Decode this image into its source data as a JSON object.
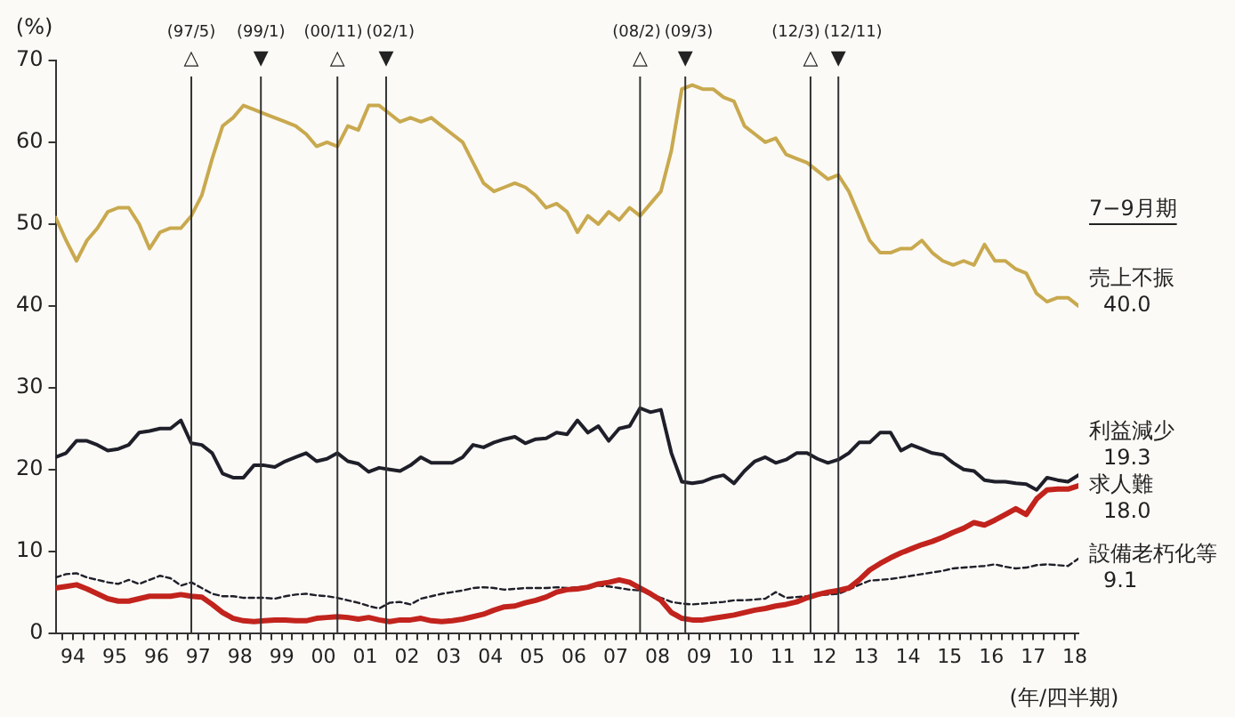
{
  "chart_data": {
    "type": "line",
    "ylabel": "(%)",
    "xlabel": "(年/四半期)",
    "x": [
      "1994-02",
      "1994-05",
      "1994-08",
      "1994-11",
      "1995-02",
      "1995-05",
      "1995-08",
      "1995-11",
      "1996-02",
      "1996-05",
      "1996-08",
      "1996-11",
      "1997-02",
      "1997-05",
      "1997-08",
      "1997-11",
      "1998-02",
      "1998-05",
      "1998-08",
      "1998-11",
      "1999-02",
      "1999-05",
      "1999-08",
      "1999-11",
      "2000-02",
      "2000-05",
      "2000-08",
      "2000-11",
      "2001-02",
      "2001-05",
      "2001-08",
      "2001-11",
      "2002-02",
      "2002-05",
      "2002-08",
      "2002-11",
      "2003-02",
      "2003-05",
      "2003-08",
      "2003-11",
      "2004-02",
      "2004-05",
      "2004-08",
      "2004-11",
      "2005-02",
      "2005-05",
      "2005-08",
      "2005-11",
      "2006-02",
      "2006-05",
      "2006-08",
      "2006-11",
      "2007-02",
      "2007-05",
      "2007-08",
      "2007-11",
      "2008-02",
      "2008-05",
      "2008-08",
      "2008-11",
      "2009-02",
      "2009-05",
      "2009-08",
      "2009-11",
      "2010-02",
      "2010-05",
      "2010-08",
      "2010-11",
      "2011-02",
      "2011-05",
      "2011-08",
      "2011-11",
      "2012-02",
      "2012-05",
      "2012-08",
      "2012-11",
      "2013-02",
      "2013-05",
      "2013-08",
      "2013-11",
      "2014-02",
      "2014-05",
      "2014-08",
      "2014-11",
      "2015-02",
      "2015-05",
      "2015-08",
      "2015-11",
      "2016-02",
      "2016-05",
      "2016-08",
      "2016-11",
      "2017-02",
      "2017-05",
      "2017-08",
      "2017-11",
      "2018-02",
      "2018-05",
      "2018-08"
    ],
    "xlim": [
      "1994-02",
      "2018-08"
    ],
    "xticks": [
      {
        "value": "1994-04",
        "label": null
      },
      {
        "value": "1994-07",
        "label": "94"
      },
      {
        "value": "1994-10",
        "label": null
      },
      {
        "value": "1995-01",
        "label": null
      },
      {
        "value": "1995-04",
        "label": null
      },
      {
        "value": "1995-07",
        "label": "95"
      },
      {
        "value": "1995-10",
        "label": null
      },
      {
        "value": "1996-01",
        "label": null
      },
      {
        "value": "1996-04",
        "label": null
      },
      {
        "value": "1996-07",
        "label": "96"
      },
      {
        "value": "1996-10",
        "label": null
      },
      {
        "value": "1997-01",
        "label": null
      },
      {
        "value": "1997-04",
        "label": null
      },
      {
        "value": "1997-07",
        "label": "97"
      },
      {
        "value": "1997-10",
        "label": null
      },
      {
        "value": "1998-01",
        "label": null
      },
      {
        "value": "1998-04",
        "label": null
      },
      {
        "value": "1998-07",
        "label": "98"
      },
      {
        "value": "1998-10",
        "label": null
      },
      {
        "value": "1999-01",
        "label": null
      },
      {
        "value": "1999-04",
        "label": null
      },
      {
        "value": "1999-07",
        "label": "99"
      },
      {
        "value": "1999-10",
        "label": null
      },
      {
        "value": "2000-01",
        "label": null
      },
      {
        "value": "2000-04",
        "label": null
      },
      {
        "value": "2000-07",
        "label": "00"
      },
      {
        "value": "2000-10",
        "label": null
      },
      {
        "value": "2001-01",
        "label": null
      },
      {
        "value": "2001-04",
        "label": null
      },
      {
        "value": "2001-07",
        "label": "01"
      },
      {
        "value": "2001-10",
        "label": null
      },
      {
        "value": "2002-01",
        "label": null
      },
      {
        "value": "2002-04",
        "label": null
      },
      {
        "value": "2002-07",
        "label": "02"
      },
      {
        "value": "2002-10",
        "label": null
      },
      {
        "value": "2003-01",
        "label": null
      },
      {
        "value": "2003-04",
        "label": null
      },
      {
        "value": "2003-07",
        "label": "03"
      },
      {
        "value": "2003-10",
        "label": null
      },
      {
        "value": "2004-01",
        "label": null
      },
      {
        "value": "2004-04",
        "label": null
      },
      {
        "value": "2004-07",
        "label": "04"
      },
      {
        "value": "2004-10",
        "label": null
      },
      {
        "value": "2005-01",
        "label": null
      },
      {
        "value": "2005-04",
        "label": null
      },
      {
        "value": "2005-07",
        "label": "05"
      },
      {
        "value": "2005-10",
        "label": null
      },
      {
        "value": "2006-01",
        "label": null
      },
      {
        "value": "2006-04",
        "label": null
      },
      {
        "value": "2006-07",
        "label": "06"
      },
      {
        "value": "2006-10",
        "label": null
      },
      {
        "value": "2007-01",
        "label": null
      },
      {
        "value": "2007-04",
        "label": null
      },
      {
        "value": "2007-07",
        "label": "07"
      },
      {
        "value": "2007-10",
        "label": null
      },
      {
        "value": "2008-01",
        "label": null
      },
      {
        "value": "2008-04",
        "label": null
      },
      {
        "value": "2008-07",
        "label": "08"
      },
      {
        "value": "2008-10",
        "label": null
      },
      {
        "value": "2009-01",
        "label": null
      },
      {
        "value": "2009-04",
        "label": null
      },
      {
        "value": "2009-07",
        "label": "09"
      },
      {
        "value": "2009-10",
        "label": null
      },
      {
        "value": "2010-01",
        "label": null
      },
      {
        "value": "2010-04",
        "label": null
      },
      {
        "value": "2010-07",
        "label": "10"
      },
      {
        "value": "2010-10",
        "label": null
      },
      {
        "value": "2011-01",
        "label": null
      },
      {
        "value": "2011-04",
        "label": null
      },
      {
        "value": "2011-07",
        "label": "11"
      },
      {
        "value": "2011-10",
        "label": null
      },
      {
        "value": "2012-01",
        "label": null
      },
      {
        "value": "2012-04",
        "label": null
      },
      {
        "value": "2012-07",
        "label": "12"
      },
      {
        "value": "2012-10",
        "label": null
      },
      {
        "value": "2013-01",
        "label": null
      },
      {
        "value": "2013-04",
        "label": null
      },
      {
        "value": "2013-07",
        "label": "13"
      },
      {
        "value": "2013-10",
        "label": null
      },
      {
        "value": "2014-01",
        "label": null
      },
      {
        "value": "2014-04",
        "label": null
      },
      {
        "value": "2014-07",
        "label": "14"
      },
      {
        "value": "2014-10",
        "label": null
      },
      {
        "value": "2015-01",
        "label": null
      },
      {
        "value": "2015-04",
        "label": null
      },
      {
        "value": "2015-07",
        "label": "15"
      },
      {
        "value": "2015-10",
        "label": null
      },
      {
        "value": "2016-01",
        "label": null
      },
      {
        "value": "2016-04",
        "label": null
      },
      {
        "value": "2016-07",
        "label": "16"
      },
      {
        "value": "2016-10",
        "label": null
      },
      {
        "value": "2017-01",
        "label": null
      },
      {
        "value": "2017-04",
        "label": null
      },
      {
        "value": "2017-07",
        "label": "17"
      },
      {
        "value": "2017-10",
        "label": null
      },
      {
        "value": "2018-01",
        "label": null
      },
      {
        "value": "2018-04",
        "label": null
      },
      {
        "value": "2018-07",
        "label": "18"
      }
    ],
    "ylim": [
      0,
      70
    ],
    "yticks": [
      0,
      10,
      20,
      30,
      40,
      50,
      60,
      70
    ],
    "legend": false,
    "marker": "none",
    "series": [
      {
        "name": "売上不振",
        "color": "#c9a94f",
        "values": [
          50.8,
          48,
          45.5,
          48,
          49.5,
          51.5,
          52,
          52,
          50,
          47,
          49,
          49.5,
          49.5,
          51,
          53.5,
          58,
          62,
          63,
          64.5,
          64,
          63.5,
          63,
          62.5,
          62,
          61,
          59.5,
          60,
          59.5,
          62,
          61.5,
          64.5,
          64.5,
          63.5,
          62.5,
          63,
          62.5,
          63,
          62,
          61,
          60,
          57.5,
          55,
          54,
          54.5,
          55,
          54.5,
          53.5,
          52,
          52.5,
          51.5,
          49,
          51,
          50,
          51.5,
          50.5,
          52,
          51,
          52.5,
          54,
          59,
          66.5,
          67,
          66.5,
          66.5,
          65.5,
          65,
          62,
          61,
          60,
          60.5,
          58.5,
          58,
          57.5,
          56.5,
          55.5,
          56,
          54,
          51,
          48,
          46.5,
          46.5,
          47,
          47,
          48,
          46.5,
          45.5,
          45,
          45.5,
          45,
          47.5,
          45.5,
          45.5,
          44.5,
          44,
          41.5,
          40.5,
          41,
          41,
          40.0
        ]
      },
      {
        "name": "利益減少",
        "color": "#1f1f2a",
        "values": [
          21.5,
          22,
          23.5,
          23.5,
          23,
          22.3,
          22.5,
          23,
          24.5,
          24.7,
          25,
          25,
          26,
          23.2,
          23,
          22,
          19.5,
          19,
          19,
          20.5,
          20.5,
          20.3,
          21,
          21.5,
          22,
          21,
          21.3,
          22,
          21,
          20.7,
          19.7,
          20.2,
          20,
          19.8,
          20.5,
          21.5,
          20.8,
          20.8,
          20.8,
          21.5,
          23,
          22.7,
          23.3,
          23.7,
          24,
          23.2,
          23.7,
          23.8,
          24.5,
          24.3,
          26,
          24.5,
          25.3,
          23.5,
          25,
          25.3,
          27.5,
          27,
          27.3,
          22,
          18.5,
          18.3,
          18.5,
          19,
          19.3,
          18.3,
          19.8,
          21,
          21.5,
          20.8,
          21.2,
          22,
          22,
          21.3,
          20.8,
          21.2,
          22,
          23.3,
          23.3,
          24.5,
          24.5,
          22.3,
          23,
          22.5,
          22,
          21.8,
          20.8,
          20,
          19.8,
          18.7,
          18.5,
          18.5,
          18.3,
          18.2,
          17.5,
          19,
          18.7,
          18.5,
          19.3
        ]
      },
      {
        "name": "求人難",
        "color": "#c2231d",
        "values": [
          5.5,
          5.7,
          5.9,
          5.4,
          4.8,
          4.2,
          3.9,
          3.9,
          4.2,
          4.5,
          4.5,
          4.5,
          4.7,
          4.5,
          4.4,
          3.5,
          2.5,
          1.8,
          1.5,
          1.4,
          1.5,
          1.6,
          1.6,
          1.5,
          1.5,
          1.8,
          1.9,
          2.0,
          1.9,
          1.7,
          1.9,
          1.6,
          1.4,
          1.6,
          1.6,
          1.8,
          1.5,
          1.4,
          1.5,
          1.7,
          2.0,
          2.3,
          2.8,
          3.2,
          3.3,
          3.7,
          4.0,
          4.4,
          5.0,
          5.3,
          5.4,
          5.6,
          6.0,
          6.2,
          6.5,
          6.2,
          5.5,
          4.8,
          4.0,
          2.5,
          1.8,
          1.6,
          1.6,
          1.8,
          2.0,
          2.2,
          2.5,
          2.8,
          3.0,
          3.3,
          3.5,
          3.8,
          4.3,
          4.7,
          5.0,
          5.2,
          5.5,
          6.5,
          7.7,
          8.5,
          9.2,
          9.8,
          10.3,
          10.8,
          11.2,
          11.7,
          12.3,
          12.8,
          13.5,
          13.2,
          13.8,
          14.5,
          15.2,
          14.5,
          16.4,
          17.5,
          17.6,
          17.6,
          18.0
        ]
      },
      {
        "name": "設備老朽化等",
        "color": "#1f1f2a",
        "line_style": "dashed",
        "values": [
          6.8,
          7.2,
          7.3,
          6.8,
          6.5,
          6.2,
          6.0,
          6.5,
          6.0,
          6.5,
          7.0,
          6.7,
          5.8,
          6.2,
          5.5,
          4.8,
          4.5,
          4.5,
          4.3,
          4.3,
          4.3,
          4.2,
          4.5,
          4.7,
          4.8,
          4.6,
          4.5,
          4.3,
          4.0,
          3.7,
          3.3,
          3.0,
          3.7,
          3.8,
          3.5,
          4.2,
          4.5,
          4.8,
          5.0,
          5.2,
          5.5,
          5.6,
          5.5,
          5.3,
          5.4,
          5.5,
          5.5,
          5.5,
          5.6,
          5.5,
          5.6,
          5.7,
          5.8,
          5.7,
          5.5,
          5.3,
          5.2,
          4.8,
          4.3,
          3.8,
          3.6,
          3.5,
          3.6,
          3.7,
          3.8,
          4.0,
          4.0,
          4.1,
          4.2,
          5.0,
          4.3,
          4.4,
          4.5,
          4.6,
          4.7,
          4.8,
          5.3,
          5.9,
          6.4,
          6.5,
          6.6,
          6.8,
          7.0,
          7.2,
          7.4,
          7.6,
          7.9,
          8.0,
          8.1,
          8.2,
          8.4,
          8.1,
          7.9,
          8.0,
          8.3,
          8.4,
          8.3,
          8.2,
          9.1
        ]
      }
    ],
    "ref_lines": [
      {
        "axis": "x",
        "value": "1997-05",
        "label": "(97/5)\n△"
      },
      {
        "axis": "x",
        "value": "1999-01",
        "label": "(99/1)\n▼"
      },
      {
        "axis": "x",
        "value": "2000-11",
        "label": "(00/11)\n△"
      },
      {
        "axis": "x",
        "value": "2002-01",
        "label": "(02/1)\n▼"
      },
      {
        "axis": "x",
        "value": "2008-02",
        "label": "(08/2)\n△"
      },
      {
        "axis": "x",
        "value": "2009-03",
        "label": "(09/3)\n▼"
      },
      {
        "axis": "x",
        "value": "2012-03",
        "label": "(12/3)\n△"
      },
      {
        "axis": "x",
        "value": "2012-11",
        "label": "(12/11)\n▼"
      }
    ],
    "annotations": [
      "7−9月期",
      {
        "text": "40.0",
        "x": "2018-08",
        "y": 40.0
      },
      {
        "text": "19.3",
        "x": "2018-08",
        "y": 19.3
      },
      {
        "text": "18.0",
        "x": "2018-08",
        "y": 18.0
      },
      {
        "text": "9.1",
        "x": "2018-08",
        "y": 9.1
      }
    ]
  }
}
